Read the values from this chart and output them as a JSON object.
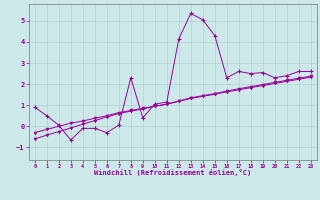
{
  "xlabel": "Windchill (Refroidissement éolien,°C)",
  "background_color": "#cce8e8",
  "grid_color": "#aacccc",
  "line_color": "#990099",
  "xlim": [
    -0.5,
    23.5
  ],
  "ylim": [
    -1.6,
    5.8
  ],
  "xticks": [
    0,
    1,
    2,
    3,
    4,
    5,
    6,
    7,
    8,
    9,
    10,
    11,
    12,
    13,
    14,
    15,
    16,
    17,
    18,
    19,
    20,
    21,
    22,
    23
  ],
  "yticks": [
    -1,
    0,
    1,
    2,
    3,
    4,
    5
  ],
  "line1_x": [
    0,
    1,
    2,
    3,
    4,
    5,
    6,
    7,
    8,
    9,
    10,
    11,
    12,
    13,
    14,
    15,
    16,
    17,
    18,
    19,
    20,
    21,
    22,
    23
  ],
  "line1_y": [
    0.9,
    0.5,
    0.05,
    -0.65,
    -0.1,
    -0.1,
    -0.3,
    0.05,
    2.3,
    0.4,
    1.05,
    1.15,
    4.15,
    5.35,
    5.05,
    4.3,
    2.3,
    2.6,
    2.5,
    2.55,
    2.3,
    2.4,
    2.6,
    2.6
  ],
  "line2_x": [
    0,
    1,
    2,
    3,
    4,
    5,
    6,
    7,
    8,
    9,
    10,
    11,
    12,
    13,
    14,
    15,
    16,
    17,
    18,
    19,
    20,
    21,
    22,
    23
  ],
  "line2_y": [
    -0.3,
    -0.15,
    0.0,
    0.15,
    0.25,
    0.38,
    0.5,
    0.65,
    0.75,
    0.85,
    0.95,
    1.05,
    1.2,
    1.35,
    1.45,
    1.55,
    1.67,
    1.78,
    1.88,
    1.98,
    2.08,
    2.18,
    2.28,
    2.38
  ],
  "line3_x": [
    0,
    1,
    2,
    3,
    4,
    5,
    6,
    7,
    8,
    9,
    10,
    11,
    12,
    13,
    14,
    15,
    16,
    17,
    18,
    19,
    20,
    21,
    22,
    23
  ],
  "line3_y": [
    -0.6,
    -0.42,
    -0.25,
    -0.08,
    0.1,
    0.27,
    0.44,
    0.6,
    0.72,
    0.82,
    0.95,
    1.05,
    1.18,
    1.32,
    1.42,
    1.52,
    1.63,
    1.73,
    1.83,
    1.93,
    2.03,
    2.13,
    2.23,
    2.33
  ]
}
